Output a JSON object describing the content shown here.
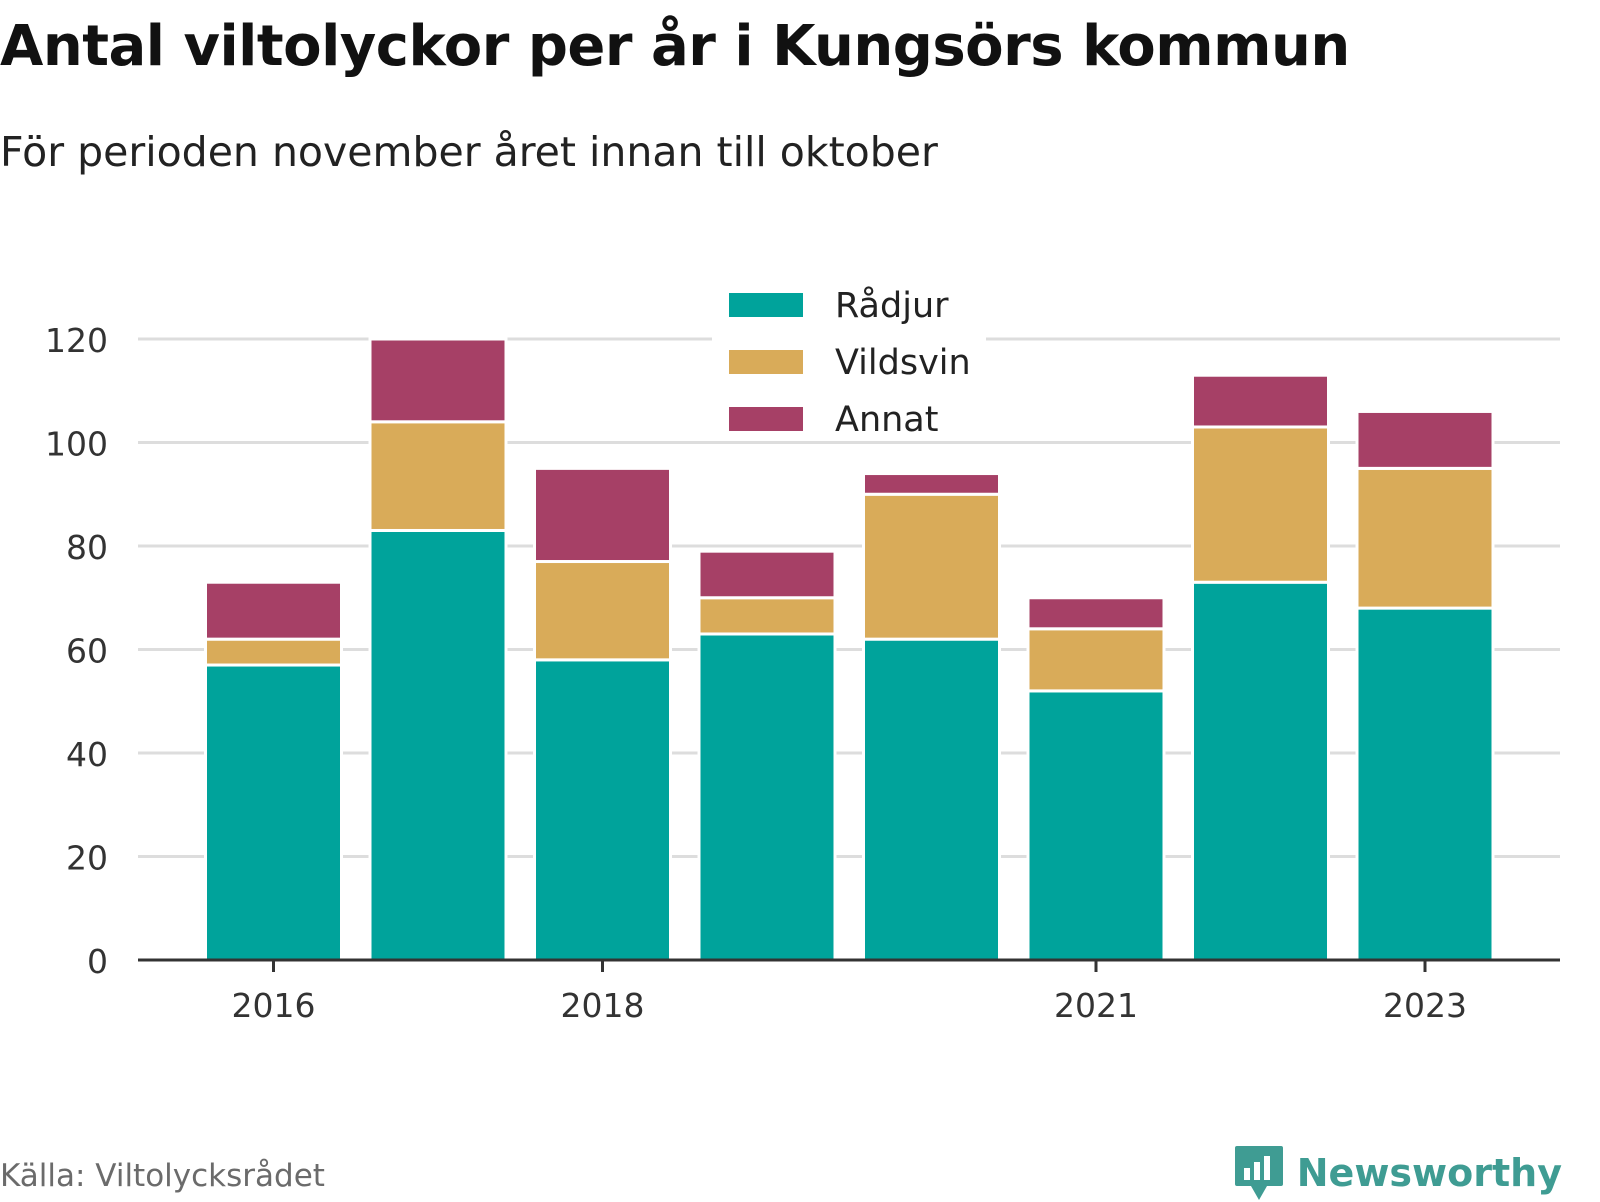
{
  "title": "Antal viltolyckor per år i Kungsörs kommun",
  "subtitle": "För perioden november året innan till oktober",
  "source": "Källa: Viltolycksrådet",
  "brand": "Newsworthy",
  "colors": {
    "Rådjur": "#00a39b",
    "Vildsvin": "#d9ab59",
    "Annat": "#a64066",
    "grid": "#dddddd",
    "axis": "#333333",
    "brand": "#3f9c93"
  },
  "chart_data": {
    "type": "bar",
    "stacked": true,
    "categories": [
      "2016",
      "2017",
      "2018",
      "2019",
      "2020",
      "2021",
      "2022",
      "2023"
    ],
    "x_tick_labels": [
      "2016",
      "2018",
      "2021",
      "2023"
    ],
    "series": [
      {
        "name": "Rådjur",
        "values": [
          57,
          83,
          58,
          63,
          62,
          52,
          73,
          68
        ]
      },
      {
        "name": "Vildsvin",
        "values": [
          5,
          21,
          19,
          7,
          28,
          12,
          30,
          27
        ]
      },
      {
        "name": "Annat",
        "values": [
          11,
          16,
          18,
          9,
          4,
          6,
          10,
          11
        ]
      }
    ],
    "ylim": [
      0,
      120
    ],
    "y_ticks": [
      0,
      20,
      40,
      60,
      80,
      100,
      120
    ],
    "grid": true,
    "legend": "top-center"
  }
}
